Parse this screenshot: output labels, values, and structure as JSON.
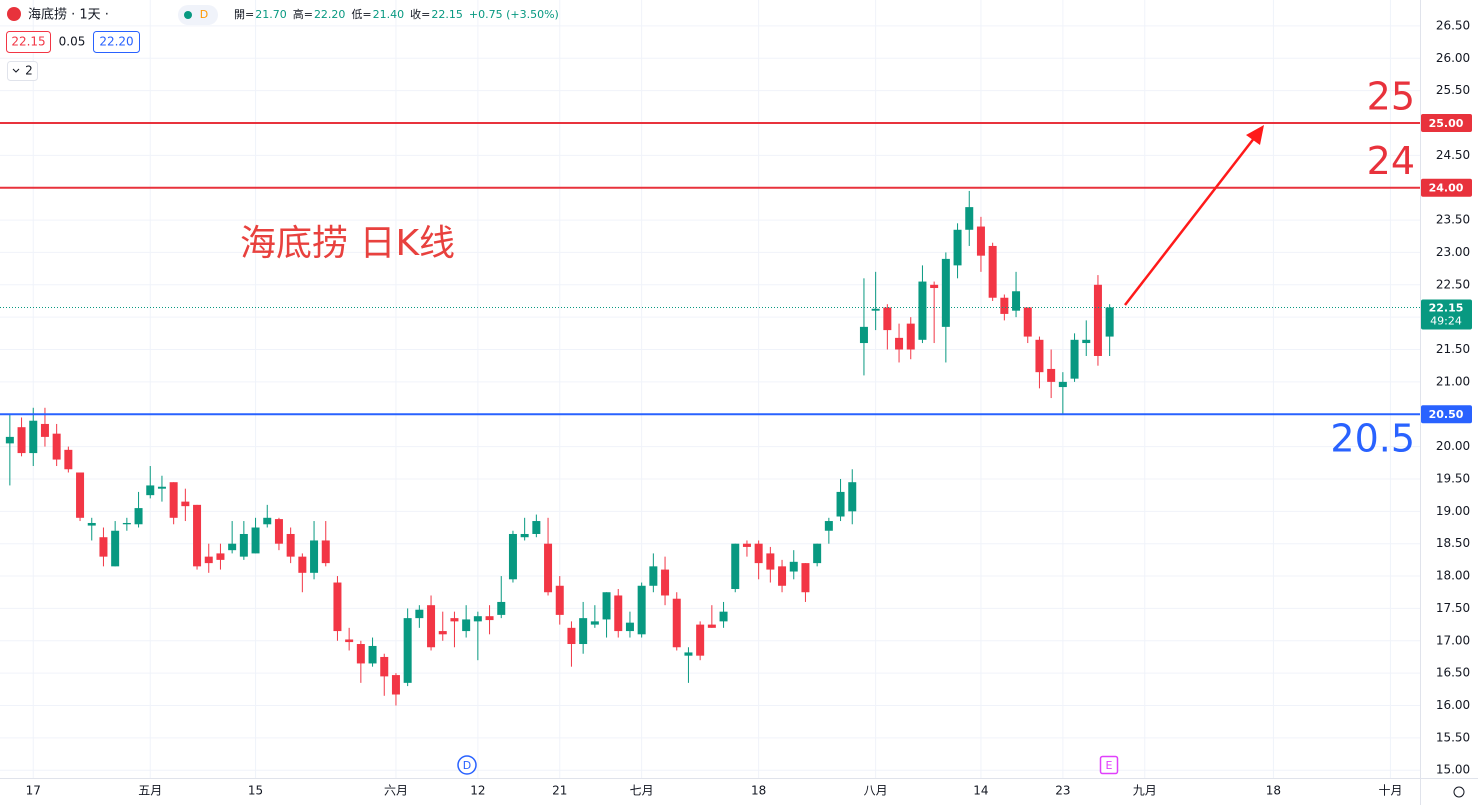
{
  "chart_data": {
    "type": "candlestick",
    "header": {
      "symbol": "海底捞 · 1天 ·",
      "badge": "D",
      "ohlc": [
        {
          "k": "開=",
          "v": "21.70"
        },
        {
          "k": "高=",
          "v": "22.20"
        },
        {
          "k": "低=",
          "v": "21.40"
        },
        {
          "k": "收=",
          "v": "22.15"
        }
      ],
      "change": "+0.75 (+3.50%)",
      "bid": "22.15",
      "spread": "0.05",
      "ask": "22.20",
      "indicators": "2"
    },
    "annotation": "海底捞 日K线",
    "event_markers": [
      "D",
      "E"
    ],
    "countdown": "49:24",
    "up_color": "#089981",
    "down_color": "#f23645",
    "grid": true,
    "categories": [
      null,
      null,
      "17",
      null,
      null,
      null,
      null,
      null,
      null,
      null,
      null,
      null,
      "五月",
      null,
      null,
      null,
      null,
      null,
      null,
      null,
      null,
      "15",
      null,
      null,
      null,
      null,
      null,
      null,
      null,
      null,
      null,
      null,
      null,
      "六月",
      null,
      null,
      null,
      null,
      null,
      null,
      "12",
      null,
      null,
      null,
      null,
      null,
      null,
      "21",
      null,
      null,
      null,
      null,
      null,
      null,
      "七月",
      null,
      null,
      null,
      null,
      null,
      null,
      null,
      null,
      null,
      "18",
      null,
      null,
      null,
      null,
      null,
      null,
      null,
      null,
      null,
      "八月",
      null,
      null,
      null,
      null,
      null,
      null,
      null,
      null,
      "14",
      null,
      null,
      null,
      null,
      null,
      null,
      "23",
      null,
      null,
      null,
      null,
      null,
      null,
      "九月",
      null,
      null,
      null,
      null,
      null,
      null,
      null,
      null,
      null,
      null,
      "18",
      null,
      null,
      null,
      null,
      null,
      null,
      null,
      null,
      null,
      "十月",
      null,
      null
    ],
    "open": [
      20.05,
      20.3,
      19.9,
      20.35,
      20.2,
      19.95,
      19.6,
      18.78,
      18.6,
      18.15,
      18.8,
      18.8,
      19.25,
      19.35,
      19.45,
      19.15,
      19.1,
      18.3,
      18.35,
      18.4,
      18.3,
      18.35,
      18.8,
      18.88,
      18.65,
      18.3,
      18.05,
      18.55,
      17.9,
      17.02,
      16.95,
      16.65,
      16.75,
      16.47,
      16.35,
      17.35,
      17.55,
      17.15,
      17.35,
      17.15,
      17.3,
      17.38,
      17.4,
      17.95,
      18.6,
      18.65,
      18.5,
      17.85,
      17.2,
      16.95,
      17.25,
      17.33,
      17.7,
      17.15,
      17.1,
      17.85,
      18.1,
      17.65,
      16.77,
      17.25,
      17.25,
      17.3,
      17.8,
      18.5,
      18.5,
      18.35,
      18.15,
      18.07,
      18.2,
      18.2,
      18.7,
      18.92,
      19.0,
      21.6,
      22.1,
      22.15,
      21.68,
      21.9,
      21.65,
      22.5,
      21.85,
      22.8,
      23.35,
      23.4,
      23.1,
      22.3,
      22.1,
      22.15,
      21.65,
      21.2,
      20.92,
      21.05,
      21.6,
      22.5,
      21.7,
      null,
      null,
      null,
      null,
      null,
      null,
      null,
      null,
      null,
      null,
      null,
      null,
      null,
      null,
      null,
      null,
      null,
      null,
      null,
      null,
      null,
      null,
      null,
      null,
      null,
      null
    ],
    "high": [
      20.5,
      20.45,
      20.6,
      20.6,
      20.35,
      20.0,
      19.6,
      18.9,
      18.75,
      18.85,
      18.9,
      19.3,
      19.7,
      19.55,
      19.45,
      19.35,
      19.1,
      18.5,
      18.5,
      18.85,
      18.85,
      18.9,
      19.1,
      18.9,
      18.75,
      18.35,
      18.85,
      18.85,
      18.0,
      17.2,
      17.0,
      17.05,
      16.8,
      16.5,
      17.5,
      17.55,
      17.7,
      17.45,
      17.45,
      17.55,
      17.45,
      17.55,
      18.0,
      18.7,
      18.9,
      18.95,
      18.9,
      18.0,
      17.3,
      17.6,
      17.55,
      17.75,
      17.8,
      17.45,
      17.9,
      18.35,
      18.3,
      17.75,
      16.9,
      17.3,
      17.55,
      17.6,
      18.5,
      18.55,
      18.55,
      18.45,
      18.25,
      18.4,
      18.2,
      18.5,
      18.9,
      19.5,
      19.65,
      22.6,
      22.7,
      22.2,
      21.9,
      22.0,
      22.8,
      22.55,
      23.0,
      23.45,
      23.95,
      23.55,
      23.15,
      22.35,
      22.7,
      22.15,
      21.7,
      21.5,
      21.15,
      21.75,
      21.95,
      22.65,
      22.2,
      null,
      null,
      null,
      null,
      null,
      null,
      null,
      null,
      null,
      null,
      null,
      null,
      null,
      null,
      null,
      null,
      null,
      null,
      null,
      null,
      null,
      null,
      null,
      null,
      null,
      null
    ],
    "low": [
      19.4,
      19.85,
      19.7,
      20.0,
      19.7,
      19.6,
      18.85,
      18.55,
      18.15,
      18.15,
      18.7,
      18.75,
      19.2,
      19.15,
      18.8,
      18.85,
      18.1,
      18.05,
      18.1,
      18.35,
      18.25,
      18.35,
      18.75,
      18.4,
      18.2,
      17.75,
      17.95,
      18.15,
      17.0,
      16.85,
      16.35,
      16.6,
      16.15,
      16.0,
      16.3,
      17.2,
      16.85,
      17.0,
      16.9,
      17.05,
      16.7,
      17.1,
      17.35,
      17.9,
      18.55,
      18.6,
      17.7,
      17.25,
      16.6,
      16.8,
      17.2,
      17.05,
      17.05,
      17.05,
      17.05,
      17.75,
      17.55,
      16.85,
      16.35,
      16.7,
      17.2,
      17.2,
      17.75,
      18.3,
      17.95,
      17.9,
      17.75,
      17.95,
      17.6,
      18.15,
      18.5,
      18.85,
      18.8,
      21.1,
      21.8,
      21.5,
      21.3,
      21.35,
      21.6,
      21.6,
      21.3,
      22.6,
      23.1,
      22.7,
      22.25,
      21.95,
      22.0,
      21.6,
      20.9,
      20.75,
      20.5,
      21.0,
      21.4,
      21.25,
      21.4,
      null,
      null,
      null,
      null,
      null,
      null,
      null,
      null,
      null,
      null,
      null,
      null,
      null,
      null,
      null,
      null,
      null,
      null,
      null,
      null,
      null,
      null,
      null,
      null,
      null,
      null
    ],
    "close": [
      20.15,
      19.9,
      20.4,
      20.15,
      19.8,
      19.65,
      18.9,
      18.82,
      18.3,
      18.7,
      18.82,
      19.05,
      19.4,
      19.38,
      18.9,
      19.08,
      18.15,
      18.2,
      18.25,
      18.5,
      18.65,
      18.75,
      18.9,
      18.5,
      18.3,
      18.05,
      18.55,
      18.2,
      17.15,
      16.98,
      16.65,
      16.92,
      16.45,
      16.17,
      17.35,
      17.48,
      16.9,
      17.1,
      17.3,
      17.33,
      17.38,
      17.32,
      17.6,
      18.65,
      18.65,
      18.85,
      17.75,
      17.4,
      16.95,
      17.35,
      17.3,
      17.75,
      17.15,
      17.28,
      17.85,
      18.15,
      17.7,
      16.9,
      16.82,
      16.77,
      17.2,
      17.45,
      18.5,
      18.45,
      18.2,
      18.1,
      17.85,
      18.22,
      17.75,
      18.5,
      18.85,
      19.3,
      19.45,
      21.85,
      22.13,
      21.8,
      21.5,
      21.5,
      22.55,
      22.45,
      22.9,
      23.35,
      23.7,
      22.95,
      22.3,
      22.05,
      22.4,
      21.7,
      21.15,
      21.0,
      21.0,
      21.65,
      21.65,
      21.4,
      22.15,
      null,
      null,
      null,
      null,
      null,
      null,
      null,
      null,
      null,
      null,
      null,
      null,
      null,
      null,
      null,
      null,
      null,
      null,
      null,
      null,
      null,
      null,
      null,
      null,
      null,
      null
    ],
    "ylim": [
      14.88,
      26.9
    ],
    "yticks": [
      {
        "value": 15,
        "label": "15.00"
      },
      {
        "value": 15.5,
        "label": "15.50"
      },
      {
        "value": 16,
        "label": "16.00"
      },
      {
        "value": 16.5,
        "label": "16.50"
      },
      {
        "value": 17,
        "label": "17.00"
      },
      {
        "value": 17.5,
        "label": "17.50"
      },
      {
        "value": 18,
        "label": "18.00"
      },
      {
        "value": 18.5,
        "label": "18.50"
      },
      {
        "value": 19,
        "label": "19.00"
      },
      {
        "value": 19.5,
        "label": "19.50"
      },
      {
        "value": 20,
        "label": "20.00"
      },
      {
        "value": 20.5,
        "label": "20.50"
      },
      {
        "value": 21,
        "label": "21.00"
      },
      {
        "value": 21.5,
        "label": "21.50"
      },
      {
        "value": 22,
        "label": "22.00"
      },
      {
        "value": 22.5,
        "label": "22.50"
      },
      {
        "value": 23,
        "label": "23.00"
      },
      {
        "value": 23.5,
        "label": "23.50"
      },
      {
        "value": 24,
        "label": "24.00"
      },
      {
        "value": 24.5,
        "label": "24.50"
      },
      {
        "value": 25,
        "label": "25.00"
      },
      {
        "value": 25.5,
        "label": "25.50"
      },
      {
        "value": 26,
        "label": "26.00"
      },
      {
        "value": 26.5,
        "label": "26.50"
      }
    ],
    "hlines": [
      {
        "value": 25,
        "label": "25",
        "axis_label": "25.00",
        "color": "#e8323c",
        "label_position": "above"
      },
      {
        "value": 24,
        "label": "24",
        "axis_label": "24.00",
        "color": "#e8323c",
        "label_position": "above"
      },
      {
        "value": 20.5,
        "label": "20.5",
        "axis_label": "20.50",
        "color": "#2962ff",
        "label_position": "below"
      }
    ]
  }
}
